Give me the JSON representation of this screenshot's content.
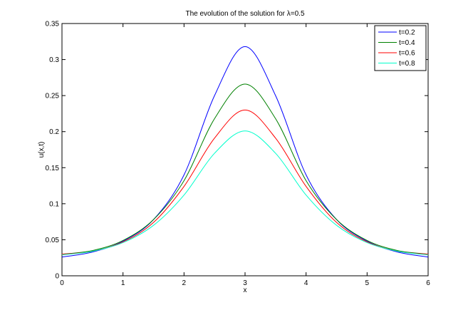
{
  "chart_data": {
    "type": "line",
    "title": "The evolution of the solution for λ=0.5",
    "xlabel": "x",
    "ylabel": "u(x,t)",
    "xlim": [
      0,
      6
    ],
    "ylim": [
      0,
      0.35
    ],
    "xticks": [
      "0",
      "1",
      "2",
      "3",
      "4",
      "5",
      "6"
    ],
    "yticks": [
      "0",
      "0.05",
      "0.1",
      "0.15",
      "0.2",
      "0.25",
      "0.3",
      "0.35"
    ],
    "grid": false,
    "legend_position": "top-right",
    "x": [
      0,
      0.5,
      1,
      1.5,
      2,
      2.5,
      3,
      3.5,
      4,
      4.5,
      5,
      5.5,
      6
    ],
    "series": [
      {
        "name": "t=0.2",
        "color": "#0000ff",
        "values": [
          0.026,
          0.033,
          0.048,
          0.078,
          0.14,
          0.25,
          0.318,
          0.25,
          0.14,
          0.078,
          0.048,
          0.033,
          0.026
        ]
      },
      {
        "name": "t=0.4",
        "color": "#008000",
        "values": [
          0.03,
          0.035,
          0.049,
          0.078,
          0.132,
          0.218,
          0.266,
          0.218,
          0.132,
          0.078,
          0.049,
          0.035,
          0.03
        ]
      },
      {
        "name": "t=0.6",
        "color": "#ff0000",
        "values": [
          0.03,
          0.034,
          0.047,
          0.074,
          0.124,
          0.191,
          0.23,
          0.191,
          0.124,
          0.074,
          0.047,
          0.034,
          0.03
        ]
      },
      {
        "name": "t=0.8",
        "color": "#00ffcc",
        "values": [
          0.029,
          0.034,
          0.046,
          0.07,
          0.112,
          0.17,
          0.201,
          0.17,
          0.112,
          0.07,
          0.046,
          0.034,
          0.029
        ]
      }
    ]
  }
}
